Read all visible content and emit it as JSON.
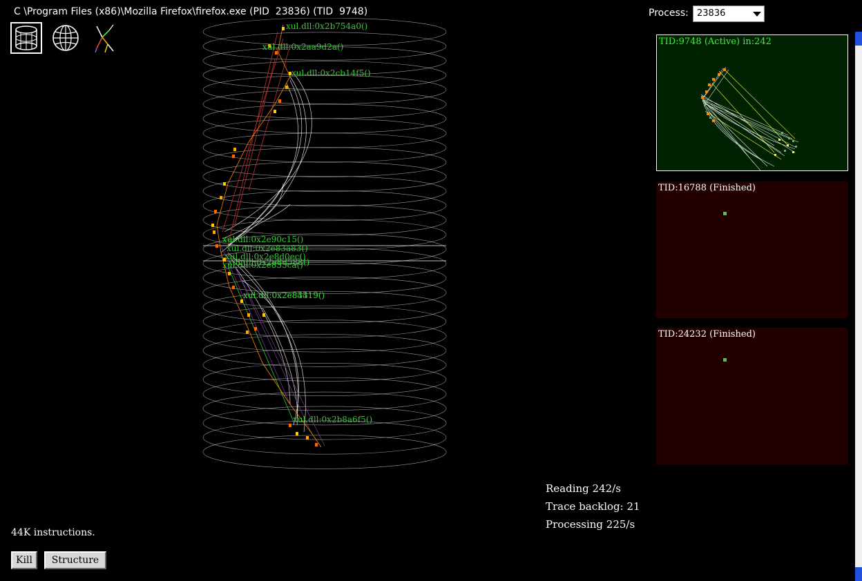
{
  "window": {
    "title": "C \\Program Files (x86)\\Mozilla Firefox\\firefox.exe (PID  23836) (TID  9748)"
  },
  "toolbar": {
    "icons": [
      "cylinder-view-icon",
      "sphere-view-icon",
      "tree-view-icon"
    ],
    "selected": "cylinder-view-icon"
  },
  "process": {
    "label": "Process:",
    "selected": "23836"
  },
  "visualization": {
    "labels": [
      "xul.dll:0x2b754a0()",
      "xul.dll:0x2aa9d2a()",
      "xul.dll:0x2cb14f5()",
      "xul.dll:0x2e90c15()",
      "xul.dll:0x2e83a83()",
      "xul.dll:0x2e8d0ec()",
      "xul.dll:0x2e8d588()",
      "xul.dll:0x2e835ca()",
      "xul.dll:0x2e83319()",
      "xul.dll:0x2e84419()",
      "xul.dll:0x2b8a6f5()"
    ],
    "colors": {
      "ring": "#cccccc",
      "label": "#33cc33",
      "arc": "#ffffff",
      "node": "#ffaa00"
    }
  },
  "threads": [
    {
      "label": "TID:9748 (Active) in:242",
      "state": "active"
    },
    {
      "label": "TID:16788 (Finished)",
      "state": "finished"
    },
    {
      "label": "TID:24232 (Finished)",
      "state": "finished"
    }
  ],
  "stats": {
    "reading": "Reading 242/s",
    "backlog": "Trace backlog: 21",
    "processing": "Processing 225/s"
  },
  "footer": {
    "instructions": "44K instructions.",
    "kill_label": "Kill",
    "structure_label": "Structure"
  }
}
